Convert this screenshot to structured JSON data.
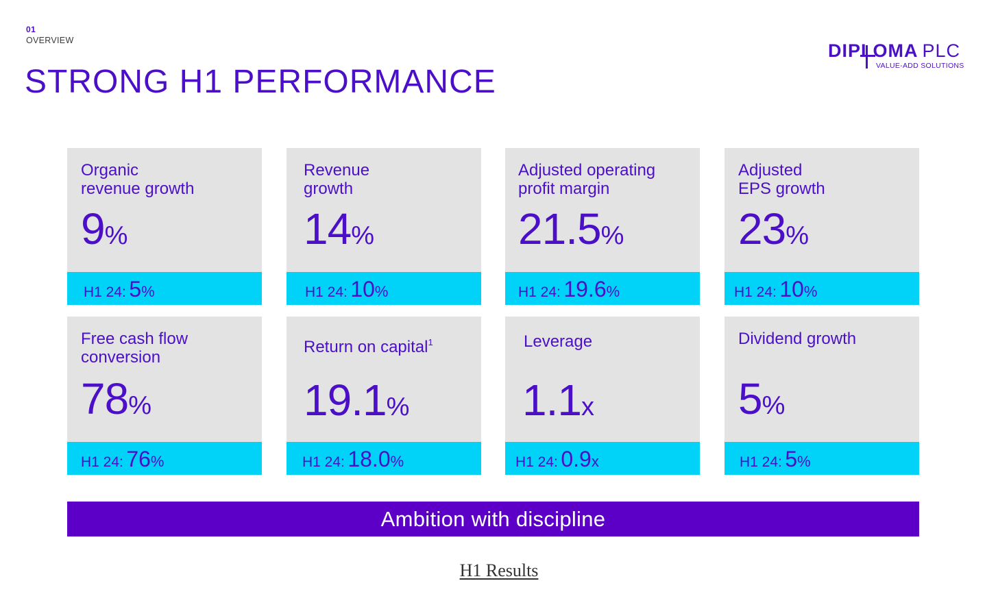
{
  "section": {
    "number": "01",
    "label": "OVERVIEW"
  },
  "title": "STRONG H1 PERFORMANCE",
  "logo": {
    "name": "DIPLOMA",
    "suffix": "PLC",
    "tagline": "VALUE-ADD SOLUTIONS"
  },
  "colors": {
    "brand_purple": "#4b0fc7",
    "card_grey": "#e3e3e3",
    "highlight_cyan": "#00d3f7",
    "banner_purple": "#5c00c7"
  },
  "metrics": [
    {
      "label": "Organic\nrevenue growth",
      "value": "9",
      "unit": "%",
      "prior_label": "H1 24:",
      "prior_value": "5",
      "prior_unit": "%"
    },
    {
      "label": "Revenue\ngrowth",
      "value": "14",
      "unit": "%",
      "prior_label": "H1 24:",
      "prior_value": "10",
      "prior_unit": "%"
    },
    {
      "label": "Adjusted operating\nprofit margin",
      "value": "21.5",
      "unit": "%",
      "prior_label": "H1 24:",
      "prior_value": "19.6",
      "prior_unit": "%"
    },
    {
      "label": "Adjusted\nEPS growth",
      "value": "23",
      "unit": "%",
      "prior_label": "H1 24:",
      "prior_value": "10",
      "prior_unit": "%"
    },
    {
      "label": "Free cash flow\nconversion",
      "value": "78",
      "unit": "%",
      "prior_label": "H1 24:",
      "prior_value": "76",
      "prior_unit": "%"
    },
    {
      "label": "Return on capital",
      "label_sup": "1",
      "value": "19.1",
      "unit": "%",
      "prior_label": "H1 24:",
      "prior_value": "18.0",
      "prior_unit": "%"
    },
    {
      "label": "Leverage",
      "value": "1.1",
      "unit": "x",
      "prior_label": "H1 24:",
      "prior_value": "0.9",
      "prior_unit": "x"
    },
    {
      "label": "Dividend growth",
      "value": "5",
      "unit": "%",
      "prior_label": "H1 24:",
      "prior_value": "5",
      "prior_unit": "%"
    }
  ],
  "banner": "Ambition with discipline",
  "footer_link": "H1 Results"
}
